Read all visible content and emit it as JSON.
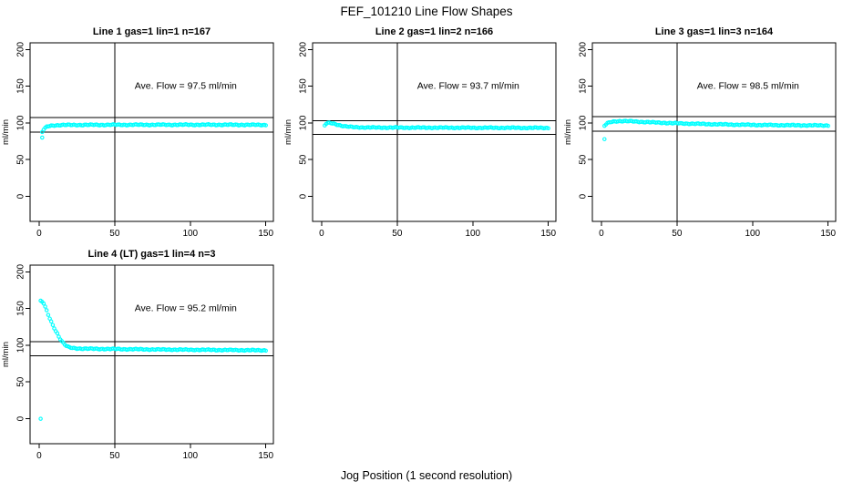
{
  "figure": {
    "title": "FEF_101210  Line Flow Shapes",
    "xlabel": "Jog Position (1 second resolution)",
    "background_color": "#FFFFFF",
    "point_color": "#00FFFF",
    "axis_color": "#000000"
  },
  "chart_data": {
    "type": "scatter",
    "marker": "open-circle",
    "grid": false,
    "legend": "none",
    "shared": {
      "ylabel": "ml/min",
      "x_ticks": [
        0,
        50,
        100,
        150
      ],
      "y_ticks": [
        0,
        50,
        100,
        150,
        200
      ],
      "xlim": [
        -6,
        155
      ],
      "ylim": [
        -34,
        209
      ],
      "vline_x": 50
    },
    "plots": [
      {
        "title": "Line 1 gas=1 lin=1 n=167",
        "annotation": "Ave. Flow =  97.5  ml/min",
        "ave_flow": 97.5,
        "n": 167,
        "row": 0,
        "col": 0,
        "hline_upper": 107.25,
        "hline_lower": 87.75,
        "outlier_points": [
          [
            2,
            80
          ]
        ],
        "series_keypoints": [
          [
            2,
            87.5
          ],
          [
            3,
            91
          ],
          [
            4,
            93
          ],
          [
            5,
            94.5
          ],
          [
            6,
            95.3
          ],
          [
            7,
            95.9
          ],
          [
            8,
            96.3
          ],
          [
            10,
            96.7
          ],
          [
            12,
            96.9
          ],
          [
            15,
            97.1
          ],
          [
            20,
            97.2
          ],
          [
            30,
            97.3
          ],
          [
            50,
            97.4
          ],
          [
            80,
            97.5
          ],
          [
            120,
            97.5
          ],
          [
            150,
            97.3
          ]
        ],
        "x_start": 2,
        "x_end": 150
      },
      {
        "title": "Line 2 gas=1 lin=2 n=166",
        "annotation": "Ave. Flow =  93.7  ml/min",
        "ave_flow": 93.7,
        "n": 166,
        "row": 0,
        "col": 1,
        "hline_upper": 103.07,
        "hline_lower": 84.33,
        "outlier_points": [],
        "series_keypoints": [
          [
            2,
            96.5
          ],
          [
            3,
            98.8
          ],
          [
            4,
            99.6
          ],
          [
            5,
            99.9
          ],
          [
            6,
            99.8
          ],
          [
            8,
            99
          ],
          [
            10,
            97.9
          ],
          [
            13,
            96.3
          ],
          [
            16,
            95.2
          ],
          [
            20,
            94.4
          ],
          [
            25,
            94
          ],
          [
            35,
            93.7
          ],
          [
            50,
            93.6
          ],
          [
            80,
            93.5
          ],
          [
            110,
            93.4
          ],
          [
            150,
            93.2
          ]
        ],
        "x_start": 2,
        "x_end": 150
      },
      {
        "title": "Line 3 gas=1 lin=3 n=164",
        "annotation": "Ave. Flow =  98.5  ml/min",
        "ave_flow": 98.5,
        "n": 164,
        "row": 0,
        "col": 2,
        "hline_upper": 108.35,
        "hline_lower": 88.65,
        "outlier_points": [
          [
            2,
            78
          ]
        ],
        "series_keypoints": [
          [
            2,
            96
          ],
          [
            3,
            98
          ],
          [
            4,
            99.5
          ],
          [
            6,
            101
          ],
          [
            8,
            101.9
          ],
          [
            10,
            102.3
          ],
          [
            14,
            102.5
          ],
          [
            18,
            102.3
          ],
          [
            25,
            101.6
          ],
          [
            35,
            100.6
          ],
          [
            45,
            99.8
          ],
          [
            55,
            99.2
          ],
          [
            70,
            98.4
          ],
          [
            90,
            97.6
          ],
          [
            110,
            97.1
          ],
          [
            130,
            96.8
          ],
          [
            150,
            96.6
          ]
        ],
        "x_start": 2,
        "x_end": 150
      },
      {
        "title": "Line 4 (LT) gas=1 lin=4 n=3",
        "annotation": "Ave. Flow =  95.2  ml/min",
        "ave_flow": 95.2,
        "n": 3,
        "row": 1,
        "col": 0,
        "hline_upper": 104.72,
        "hline_lower": 85.68,
        "outlier_points": [
          [
            1,
            0
          ]
        ],
        "series_keypoints": [
          [
            1,
            160
          ],
          [
            2,
            159
          ],
          [
            3,
            157
          ],
          [
            4,
            152
          ],
          [
            5,
            147
          ],
          [
            6,
            141.5
          ],
          [
            7,
            136.5
          ],
          [
            8,
            132
          ],
          [
            9,
            127.5
          ],
          [
            10,
            123.5
          ],
          [
            11,
            119.5
          ],
          [
            12,
            116
          ],
          [
            13,
            112
          ],
          [
            14,
            108.5
          ],
          [
            15,
            105.5
          ],
          [
            16,
            103
          ],
          [
            17,
            100.8
          ],
          [
            18,
            99
          ],
          [
            19,
            97.8
          ],
          [
            20,
            97
          ],
          [
            22,
            96.2
          ],
          [
            25,
            95.7
          ],
          [
            30,
            95.3
          ],
          [
            40,
            95
          ],
          [
            55,
            94.7
          ],
          [
            70,
            94.4
          ],
          [
            90,
            94
          ],
          [
            110,
            93.7
          ],
          [
            130,
            93.4
          ],
          [
            150,
            93.1
          ]
        ],
        "x_start": 1,
        "x_end": 150
      }
    ]
  }
}
